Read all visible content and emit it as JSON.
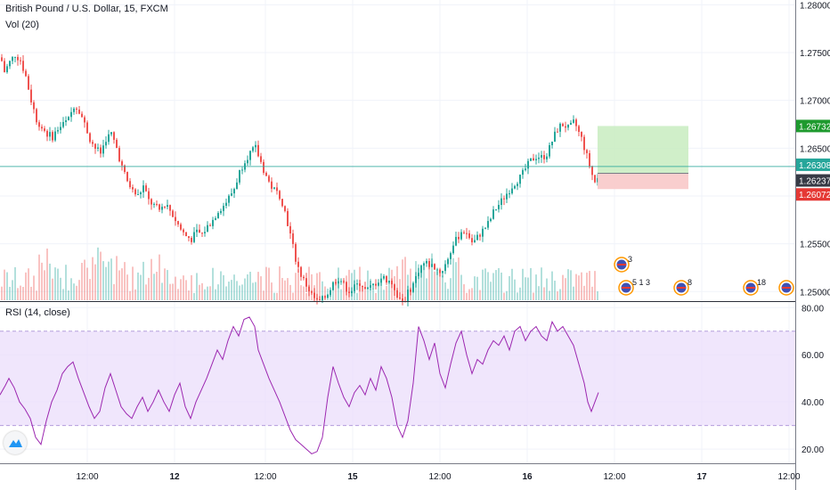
{
  "header": {
    "title": "British Pound / U.S. Dollar, 15, FXCM",
    "volume_label": "Vol (20)",
    "rsi_label": "RSI (14, close)"
  },
  "colors": {
    "up": "#26a69a",
    "down": "#ef5350",
    "rsi_line": "#9c27b0",
    "rsi_band": "#e9dcfb",
    "target_zone": "#c8ecc0",
    "stop_zone": "#f8c9c9",
    "tag_green": "#1e9a2e",
    "tag_teal": "#26a69a",
    "tag_red": "#e53935",
    "tag_dark": "#363a45"
  },
  "chart_data": [
    {
      "type": "candlestick",
      "title": "British Pound / U.S. Dollar, 15, FXCM",
      "ylim": [
        1.249,
        1.2805
      ],
      "y_ticks": [
        "1.28000",
        "1.27500",
        "1.27000",
        "1.26500",
        "1.26000",
        "1.25500",
        "1.25000"
      ],
      "y_tick_values": [
        1.28,
        1.275,
        1.27,
        1.265,
        1.26,
        1.255,
        1.25
      ],
      "x_ticks": [
        "12:00",
        "12",
        "12:00",
        "15",
        "12:00",
        "16",
        "12:00",
        "17",
        "12:00"
      ],
      "price_tags": [
        {
          "label": "1.26732",
          "value": 1.26732,
          "color": "green"
        },
        {
          "label": "1.26308",
          "value": 1.26308,
          "color": "teal"
        },
        {
          "label": "1.26237",
          "value": 1.26237,
          "color": "dark"
        },
        {
          "label": "1.26072",
          "value": 1.26072,
          "color": "red"
        }
      ],
      "close_path": [
        [
          0,
          1.2745
        ],
        [
          4,
          1.273
        ],
        [
          10,
          1.274
        ],
        [
          16,
          1.2748
        ],
        [
          22,
          1.2742
        ],
        [
          28,
          1.2725
        ],
        [
          34,
          1.27
        ],
        [
          40,
          1.268
        ],
        [
          46,
          1.2672
        ],
        [
          52,
          1.2665
        ],
        [
          58,
          1.2662
        ],
        [
          64,
          1.267
        ],
        [
          70,
          1.2675
        ],
        [
          76,
          1.268
        ],
        [
          82,
          1.2695
        ],
        [
          88,
          1.269
        ],
        [
          94,
          1.2675
        ],
        [
          100,
          1.266
        ],
        [
          106,
          1.265
        ],
        [
          112,
          1.2645
        ],
        [
          118,
          1.266
        ],
        [
          124,
          1.2665
        ],
        [
          130,
          1.265
        ],
        [
          136,
          1.263
        ],
        [
          142,
          1.2615
        ],
        [
          148,
          1.2605
        ],
        [
          154,
          1.26
        ],
        [
          160,
          1.261
        ],
        [
          166,
          1.2595
        ],
        [
          172,
          1.259
        ],
        [
          178,
          1.2585
        ],
        [
          184,
          1.2592
        ],
        [
          190,
          1.2585
        ],
        [
          196,
          1.2575
        ],
        [
          202,
          1.2565
        ],
        [
          208,
          1.2558
        ],
        [
          214,
          1.2555
        ],
        [
          220,
          1.2562
        ],
        [
          226,
          1.256
        ],
        [
          232,
          1.2568
        ],
        [
          238,
          1.2575
        ],
        [
          244,
          1.2585
        ],
        [
          250,
          1.259
        ],
        [
          256,
          1.2598
        ],
        [
          262,
          1.2608
        ],
        [
          268,
          1.2625
        ],
        [
          274,
          1.2638
        ],
        [
          280,
          1.2645
        ],
        [
          286,
          1.265
        ],
        [
          290,
          1.264
        ],
        [
          296,
          1.2625
        ],
        [
          302,
          1.2612
        ],
        [
          308,
          1.2605
        ],
        [
          314,
          1.26
        ],
        [
          320,
          1.258
        ],
        [
          326,
          1.2555
        ],
        [
          332,
          1.253
        ],
        [
          338,
          1.2515
        ],
        [
          344,
          1.2505
        ],
        [
          350,
          1.2495
        ],
        [
          356,
          1.2488
        ],
        [
          362,
          1.2492
        ],
        [
          368,
          1.25
        ],
        [
          374,
          1.251
        ],
        [
          380,
          1.2515
        ],
        [
          386,
          1.2505
        ],
        [
          392,
          1.25
        ],
        [
          398,
          1.2505
        ],
        [
          404,
          1.251
        ],
        [
          410,
          1.25
        ],
        [
          416,
          1.2505
        ],
        [
          422,
          1.251
        ],
        [
          428,
          1.2515
        ],
        [
          434,
          1.2512
        ],
        [
          440,
          1.2508
        ],
        [
          446,
          1.2495
        ],
        [
          452,
          1.249
        ],
        [
          458,
          1.25
        ],
        [
          464,
          1.251
        ],
        [
          470,
          1.2525
        ],
        [
          476,
          1.253
        ],
        [
          482,
          1.2528
        ],
        [
          488,
          1.2525
        ],
        [
          494,
          1.252
        ],
        [
          500,
          1.253
        ],
        [
          506,
          1.2545
        ],
        [
          512,
          1.2555
        ],
        [
          518,
          1.2565
        ],
        [
          524,
          1.256
        ],
        [
          530,
          1.255
        ],
        [
          536,
          1.2558
        ],
        [
          542,
          1.2565
        ],
        [
          548,
          1.2572
        ],
        [
          554,
          1.2585
        ],
        [
          560,
          1.2592
        ],
        [
          566,
          1.26
        ],
        [
          572,
          1.2608
        ],
        [
          578,
          1.2615
        ],
        [
          584,
          1.262
        ],
        [
          590,
          1.263
        ],
        [
          596,
          1.2638
        ],
        [
          602,
          1.2642
        ],
        [
          608,
          1.264
        ],
        [
          614,
          1.2645
        ],
        [
          620,
          1.266
        ],
        [
          626,
          1.2672
        ],
        [
          632,
          1.2675
        ],
        [
          638,
          1.267
        ],
        [
          644,
          1.2678
        ],
        [
          648,
          1.2668
        ],
        [
          652,
          1.266
        ],
        [
          656,
          1.2648
        ],
        [
          660,
          1.2635
        ],
        [
          664,
          1.2622
        ],
        [
          668,
          1.2612
        ],
        [
          672,
          1.2624
        ]
      ],
      "position_box": {
        "x_start": 671,
        "x_end": 773,
        "entry": 1.26237,
        "target": 1.26732,
        "stop": 1.26072
      }
    },
    {
      "type": "line",
      "title": "RSI (14, close)",
      "ylim": [
        14,
        82
      ],
      "y_ticks": [
        "80.00",
        "60.00",
        "40.00",
        "20.00"
      ],
      "y_tick_values": [
        80,
        60,
        40,
        20
      ],
      "band": [
        30,
        70
      ],
      "values": [
        [
          0,
          43
        ],
        [
          6,
          47
        ],
        [
          10,
          50
        ],
        [
          16,
          46
        ],
        [
          22,
          40
        ],
        [
          28,
          37
        ],
        [
          34,
          33
        ],
        [
          40,
          25
        ],
        [
          46,
          22
        ],
        [
          52,
          32
        ],
        [
          58,
          40
        ],
        [
          64,
          45
        ],
        [
          70,
          52
        ],
        [
          76,
          55
        ],
        [
          82,
          57
        ],
        [
          88,
          50
        ],
        [
          94,
          44
        ],
        [
          100,
          38
        ],
        [
          106,
          33
        ],
        [
          112,
          36
        ],
        [
          118,
          46
        ],
        [
          124,
          52
        ],
        [
          130,
          45
        ],
        [
          136,
          38
        ],
        [
          142,
          35
        ],
        [
          148,
          33
        ],
        [
          154,
          38
        ],
        [
          160,
          42
        ],
        [
          166,
          36
        ],
        [
          172,
          40
        ],
        [
          178,
          45
        ],
        [
          184,
          40
        ],
        [
          190,
          36
        ],
        [
          196,
          43
        ],
        [
          202,
          48
        ],
        [
          208,
          38
        ],
        [
          214,
          33
        ],
        [
          220,
          40
        ],
        [
          226,
          45
        ],
        [
          232,
          50
        ],
        [
          238,
          56
        ],
        [
          244,
          62
        ],
        [
          250,
          58
        ],
        [
          256,
          66
        ],
        [
          262,
          72
        ],
        [
          268,
          68
        ],
        [
          274,
          75
        ],
        [
          280,
          76
        ],
        [
          286,
          72
        ],
        [
          290,
          62
        ],
        [
          296,
          56
        ],
        [
          302,
          50
        ],
        [
          308,
          45
        ],
        [
          314,
          40
        ],
        [
          320,
          34
        ],
        [
          326,
          28
        ],
        [
          332,
          24
        ],
        [
          338,
          22
        ],
        [
          344,
          20
        ],
        [
          350,
          18
        ],
        [
          356,
          19
        ],
        [
          362,
          25
        ],
        [
          368,
          42
        ],
        [
          374,
          55
        ],
        [
          380,
          48
        ],
        [
          386,
          42
        ],
        [
          392,
          38
        ],
        [
          398,
          44
        ],
        [
          404,
          47
        ],
        [
          410,
          43
        ],
        [
          416,
          50
        ],
        [
          422,
          45
        ],
        [
          428,
          55
        ],
        [
          434,
          50
        ],
        [
          440,
          42
        ],
        [
          446,
          30
        ],
        [
          452,
          25
        ],
        [
          458,
          32
        ],
        [
          464,
          48
        ],
        [
          470,
          72
        ],
        [
          476,
          66
        ],
        [
          482,
          58
        ],
        [
          488,
          65
        ],
        [
          494,
          52
        ],
        [
          500,
          46
        ],
        [
          506,
          56
        ],
        [
          512,
          65
        ],
        [
          518,
          70
        ],
        [
          524,
          60
        ],
        [
          530,
          52
        ],
        [
          536,
          58
        ],
        [
          542,
          56
        ],
        [
          548,
          62
        ],
        [
          554,
          66
        ],
        [
          560,
          64
        ],
        [
          566,
          68
        ],
        [
          572,
          62
        ],
        [
          578,
          70
        ],
        [
          584,
          72
        ],
        [
          590,
          66
        ],
        [
          596,
          70
        ],
        [
          602,
          72
        ],
        [
          608,
          68
        ],
        [
          614,
          66
        ],
        [
          620,
          74
        ],
        [
          626,
          70
        ],
        [
          632,
          72
        ],
        [
          638,
          68
        ],
        [
          644,
          64
        ],
        [
          650,
          56
        ],
        [
          656,
          48
        ],
        [
          660,
          40
        ],
        [
          664,
          36
        ],
        [
          668,
          40
        ],
        [
          672,
          44
        ]
      ]
    },
    {
      "type": "bar",
      "title": "Vol (20)",
      "note": "volume columns at bottom of price pane, colored by candle direction"
    }
  ],
  "events": [
    {
      "x": 703,
      "label": "3",
      "row": 1
    },
    {
      "x": 708,
      "label": "5 1 3",
      "row": 2
    },
    {
      "x": 770,
      "label": "8",
      "row": 2
    },
    {
      "x": 848,
      "label": "18",
      "row": 2
    },
    {
      "x": 888,
      "label": "",
      "row": 2
    }
  ]
}
